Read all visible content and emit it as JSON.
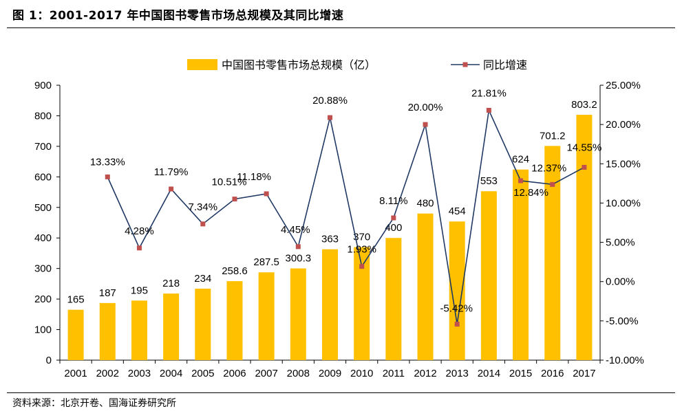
{
  "figure": {
    "title": "图 1：2001-2017 年中国图书零售市场总规模及其同比增速",
    "source": "资料来源：北京开卷、国海证券研究所"
  },
  "chart_data": {
    "type": "bar+line",
    "categories": [
      "2001",
      "2002",
      "2003",
      "2004",
      "2005",
      "2006",
      "2007",
      "2008",
      "2009",
      "2010",
      "2011",
      "2012",
      "2013",
      "2014",
      "2015",
      "2016",
      "2017"
    ],
    "series": [
      {
        "name": "中国图书零售市场总规模（亿）",
        "type": "bar",
        "axis": "left",
        "color": "#FFC000",
        "values": [
          165,
          187,
          195,
          218,
          234,
          258.6,
          287.5,
          300.3,
          363,
          370,
          400,
          480,
          454,
          553,
          624,
          701.2,
          803.2
        ],
        "labels": [
          "165",
          "187",
          "195",
          "218",
          "234",
          "258.6",
          "287.5",
          "300.3",
          "363",
          "370",
          "400",
          "480",
          "454",
          "553",
          "624",
          "701.2",
          "803.2"
        ]
      },
      {
        "name": "同比增速",
        "type": "line",
        "axis": "right",
        "color": "#1F3864",
        "marker_color": "#C0504D",
        "values": [
          null,
          13.33,
          4.28,
          11.79,
          7.34,
          10.51,
          11.18,
          4.45,
          20.88,
          1.93,
          8.11,
          20.0,
          -5.42,
          21.81,
          12.84,
          12.37,
          14.55
        ],
        "labels": [
          "",
          "13.33%",
          "4.28%",
          "11.79%",
          "7.34%",
          "10.51%",
          "11.18%",
          "4.45%",
          "20.88%",
          "1.93%",
          "8.11%",
          "20.00%",
          "-5.42%",
          "21.81%",
          "12.84%",
          "12.37%",
          "14.55%"
        ]
      }
    ],
    "left_axis": {
      "min": 0,
      "max": 900,
      "step": 100,
      "tick_labels": [
        "0",
        "100",
        "200",
        "300",
        "400",
        "500",
        "600",
        "700",
        "800",
        "900"
      ]
    },
    "right_axis": {
      "min": -10,
      "max": 25,
      "step": 5,
      "tick_labels": [
        "-10.00%",
        "-5.00%",
        "0.00%",
        "5.00%",
        "10.00%",
        "15.00%",
        "20.00%",
        "25.00%"
      ]
    },
    "legend_position": "top-center",
    "grid": false
  }
}
